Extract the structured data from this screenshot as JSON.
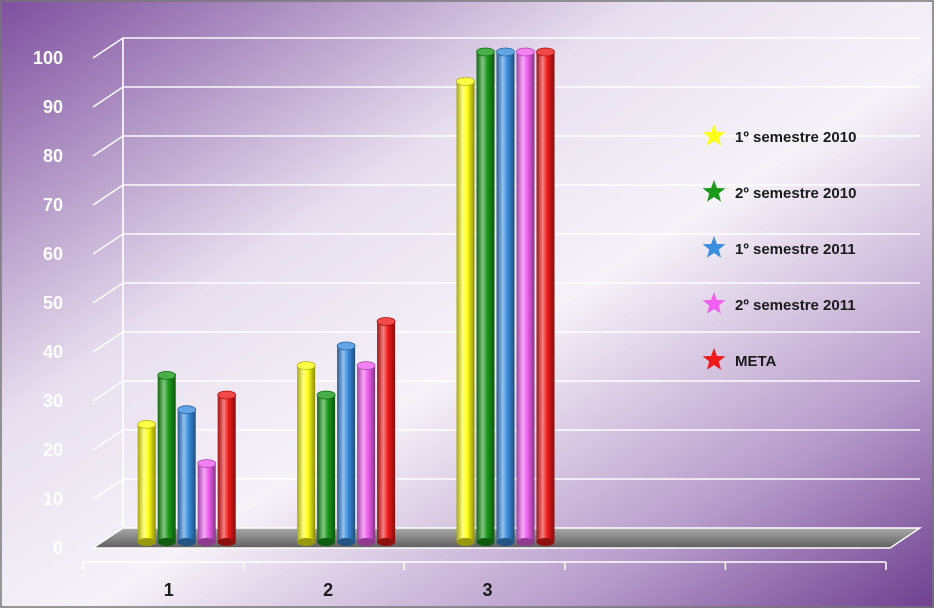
{
  "chart_data": {
    "type": "bar",
    "title": "",
    "xlabel": "",
    "ylabel": "",
    "ylim": [
      0,
      100
    ],
    "yticks": [
      0,
      10,
      20,
      30,
      40,
      50,
      60,
      70,
      80,
      90,
      100
    ],
    "categories": [
      "1",
      "2",
      "3"
    ],
    "grid": true,
    "legend_position": "right",
    "series": [
      {
        "name": "1º semestre 2010",
        "color": "#ffff1a",
        "values": [
          24,
          36,
          94
        ]
      },
      {
        "name": "2º semestre 2010",
        "color": "#1a9a1a",
        "values": [
          34,
          30,
          100
        ]
      },
      {
        "name": "1º semestre 2011",
        "color": "#3a8ee0",
        "values": [
          27,
          40,
          100
        ]
      },
      {
        "name": "2º semestre 2011",
        "color": "#f060f0",
        "values": [
          16,
          36,
          100
        ]
      },
      {
        "name": "META",
        "color": "#f01a1a",
        "values": [
          30,
          45,
          100
        ]
      }
    ]
  }
}
